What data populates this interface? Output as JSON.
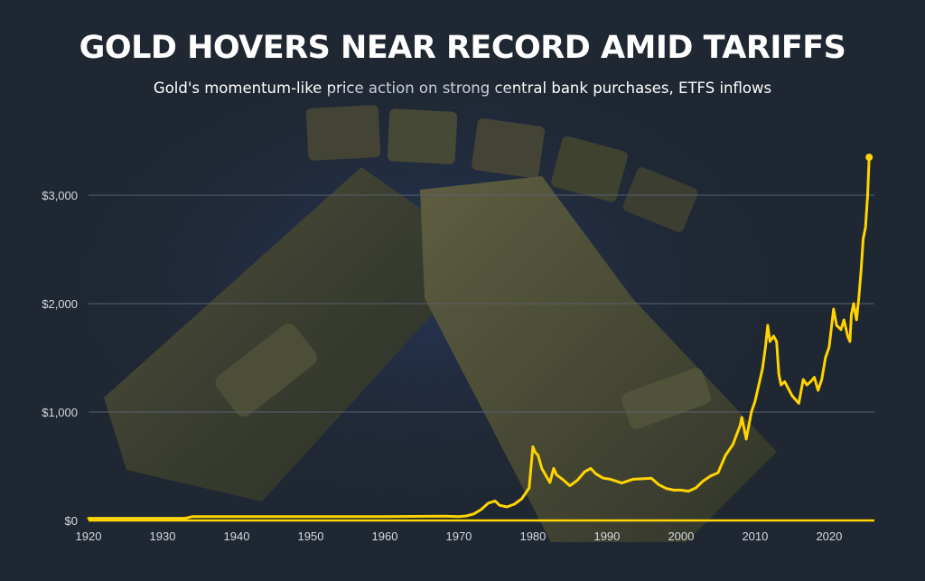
{
  "title": "GOLD HOVERS NEAR RECORD AMID TARIFFS",
  "subtitle": "Gold's momentum-like price action on strong central bank purchases, ETFS inflows",
  "colors": {
    "background": "#1f2732",
    "line": "#ffd400",
    "grid": "#59616b",
    "tick_text": "#d6d9de"
  },
  "chart_data": {
    "type": "line",
    "title": "GOLD HOVERS NEAR RECORD AMID TARIFFS",
    "subtitle": "Gold's momentum-like price action on strong central bank purchases, ETFS inflows",
    "xlabel": "",
    "ylabel": "",
    "xlim": [
      1920,
      2025.5
    ],
    "ylim": [
      0,
      3000
    ],
    "x_ticks": [
      1920,
      1930,
      1940,
      1950,
      1960,
      1970,
      1980,
      1990,
      2000,
      2010,
      2020
    ],
    "x_tick_labels": [
      "1920",
      "1930",
      "1940",
      "1950",
      "1960",
      "1970",
      "1980",
      "1990",
      "2000",
      "2010",
      "2020"
    ],
    "y_ticks": [
      0,
      1000,
      2000,
      3000
    ],
    "y_tick_labels": [
      "$0",
      "$1,000",
      "$2,000",
      "$3,000"
    ],
    "grid": "horizontal",
    "legend": "none",
    "end_marker": true,
    "series": [
      {
        "values_x": [
          1920,
          1933,
          1934,
          1960,
          1968,
          1970,
          1971,
          1972,
          1973,
          1974,
          1974.9,
          1975.5,
          1976.5,
          1977.5,
          1978.5,
          1979.5,
          1980.0,
          1980.3,
          1980.7,
          1981.2,
          1981.7,
          1982.3,
          1982.8,
          1983.2,
          1984.0,
          1985.0,
          1986.0,
          1987.0,
          1987.8,
          1988.5,
          1989.5,
          1990.5,
          1992.0,
          1993.5,
          1995.0,
          1996.0,
          1997.0,
          1998.0,
          1999.0,
          2000.0,
          2001.0,
          2002.0,
          2003.0,
          2004.0,
          2005.0,
          2006.0,
          2007.0,
          2008.0,
          2008.2,
          2008.8,
          2009.5,
          2010.0,
          2010.5,
          2011.0,
          2011.4,
          2011.7,
          2012.0,
          2012.5,
          2012.9,
          2013.2,
          2013.5,
          2014.0,
          2015.0,
          2015.9,
          2016.5,
          2017.0,
          2017.5,
          2018.0,
          2018.5,
          2019.0,
          2019.5,
          2020.0,
          2020.6,
          2021.0,
          2021.6,
          2022.0,
          2022.5,
          2022.8,
          2023.0,
          2023.3,
          2023.7,
          2024.0,
          2024.3,
          2024.6,
          2024.9,
          2025.2,
          2025.4
        ],
        "values": [
          20,
          20,
          35,
          35,
          40,
          36,
          42,
          60,
          100,
          160,
          180,
          140,
          125,
          150,
          200,
          300,
          680,
          630,
          600,
          480,
          420,
          350,
          480,
          420,
          380,
          320,
          370,
          450,
          480,
          430,
          390,
          380,
          345,
          380,
          385,
          390,
          330,
          295,
          280,
          280,
          270,
          300,
          365,
          410,
          440,
          600,
          700,
          880,
          950,
          750,
          1000,
          1100,
          1250,
          1400,
          1600,
          1800,
          1650,
          1700,
          1650,
          1350,
          1250,
          1280,
          1150,
          1080,
          1300,
          1250,
          1280,
          1320,
          1200,
          1300,
          1500,
          1600,
          1950,
          1800,
          1760,
          1850,
          1700,
          1650,
          1900,
          2000,
          1850,
          2050,
          2300,
          2600,
          2700,
          3000,
          3350
        ]
      }
    ]
  }
}
